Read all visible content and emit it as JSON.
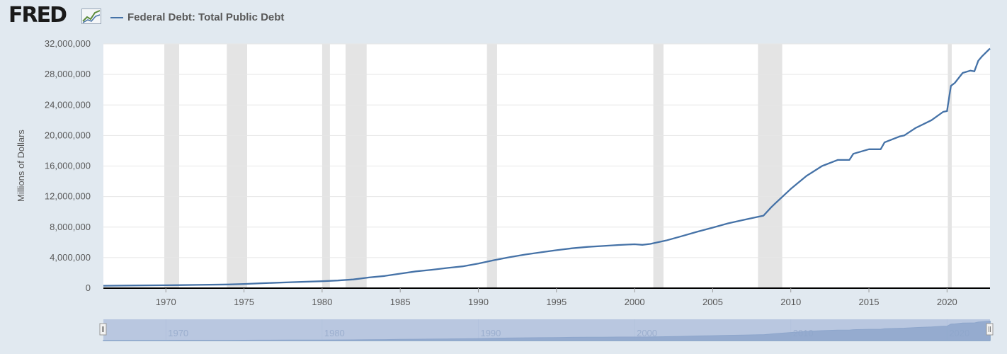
{
  "brand": {
    "logo_text": "FRED",
    "logo_icon": "line-chart-icon"
  },
  "colors": {
    "background": "#e1e9f0",
    "plot_bg": "#ffffff",
    "series": "#4572a7",
    "recession": "#e4e4e4",
    "navigator_mask": "#a7b8d8"
  },
  "chart_data": {
    "type": "line",
    "title": "",
    "xlabel": "",
    "ylabel": "Millions of Dollars",
    "xlim": [
      1966.0,
      2022.75
    ],
    "ylim": [
      0,
      32000000
    ],
    "grid": true,
    "legend_position": "top-left",
    "x_ticks": [
      "1970",
      "1975",
      "1980",
      "1985",
      "1990",
      "1995",
      "2000",
      "2005",
      "2010",
      "2015",
      "2020"
    ],
    "y_ticks": [
      "0",
      "4,000,000",
      "8,000,000",
      "12,000,000",
      "16,000,000",
      "20,000,000",
      "24,000,000",
      "28,000,000",
      "32,000,000"
    ],
    "recessions": [
      [
        1969.9,
        1970.85
      ],
      [
        1973.9,
        1975.2
      ],
      [
        1980.0,
        1980.5
      ],
      [
        1981.5,
        1982.85
      ],
      [
        1990.55,
        1991.2
      ],
      [
        2001.2,
        2001.85
      ],
      [
        2007.9,
        2009.45
      ],
      [
        2020.05,
        2020.3
      ]
    ],
    "series": [
      {
        "name": "Federal Debt: Total Public Debt",
        "x": [
          1966,
          1968,
          1970,
          1972,
          1974,
          1975,
          1976,
          1978,
          1980,
          1981,
          1982,
          1983,
          1984,
          1985,
          1986,
          1987,
          1988,
          1989,
          1990,
          1991,
          1992,
          1993,
          1994,
          1995,
          1996,
          1997,
          1998,
          1999,
          2000,
          2000.5,
          2001,
          2002,
          2003,
          2004,
          2005,
          2006,
          2007,
          2008,
          2008.25,
          2008.75,
          2009,
          2010,
          2011,
          2012,
          2013,
          2013.75,
          2014,
          2015,
          2015.75,
          2016,
          2017,
          2017.25,
          2018,
          2019,
          2019.75,
          2020,
          2020.25,
          2020.5,
          2021,
          2021.5,
          2021.75,
          2022,
          2022.25,
          2022.75
        ],
        "values": [
          320000,
          350000,
          380000,
          430000,
          480000,
          550000,
          630000,
          780000,
          910000,
          1000000,
          1140000,
          1400000,
          1600000,
          1900000,
          2200000,
          2400000,
          2640000,
          2860000,
          3230000,
          3660000,
          4060000,
          4410000,
          4690000,
          4970000,
          5220000,
          5410000,
          5530000,
          5660000,
          5750000,
          5680000,
          5800000,
          6230000,
          6800000,
          7380000,
          7930000,
          8500000,
          8950000,
          9400000,
          9500000,
          10600000,
          11100000,
          13000000,
          14700000,
          16000000,
          16800000,
          16800000,
          17600000,
          18200000,
          18200000,
          19100000,
          19900000,
          20000000,
          21000000,
          22000000,
          23100000,
          23200000,
          26500000,
          26900000,
          28200000,
          28500000,
          28400000,
          29800000,
          30400000,
          31400000
        ]
      }
    ]
  }
}
